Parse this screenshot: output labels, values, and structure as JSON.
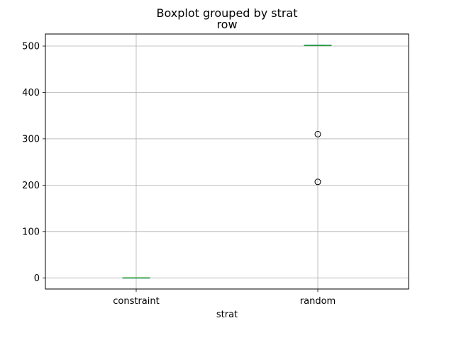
{
  "chart_data": {
    "type": "boxplot",
    "suptitle": "Boxplot grouped by strat",
    "title": "row",
    "xlabel": "strat",
    "ylabel": "",
    "categories": [
      "constraint",
      "random"
    ],
    "ylim": [
      -24,
      526
    ],
    "yticks": [
      0,
      100,
      200,
      300,
      400,
      500
    ],
    "grid": true,
    "boxes": [
      {
        "category": "constraint",
        "whislo": 0,
        "q1": 0,
        "median": 0,
        "q3": 0,
        "whishi": 0,
        "fliers": []
      },
      {
        "category": "random",
        "whislo": 501,
        "q1": 501,
        "median": 501,
        "q3": 502,
        "whishi": 502,
        "fliers": [
          310,
          207
        ]
      }
    ],
    "colors": {
      "box": "#1f77b4",
      "median": "#2ca02c",
      "grid": "#b0b0b0",
      "flier": "#000000"
    }
  }
}
